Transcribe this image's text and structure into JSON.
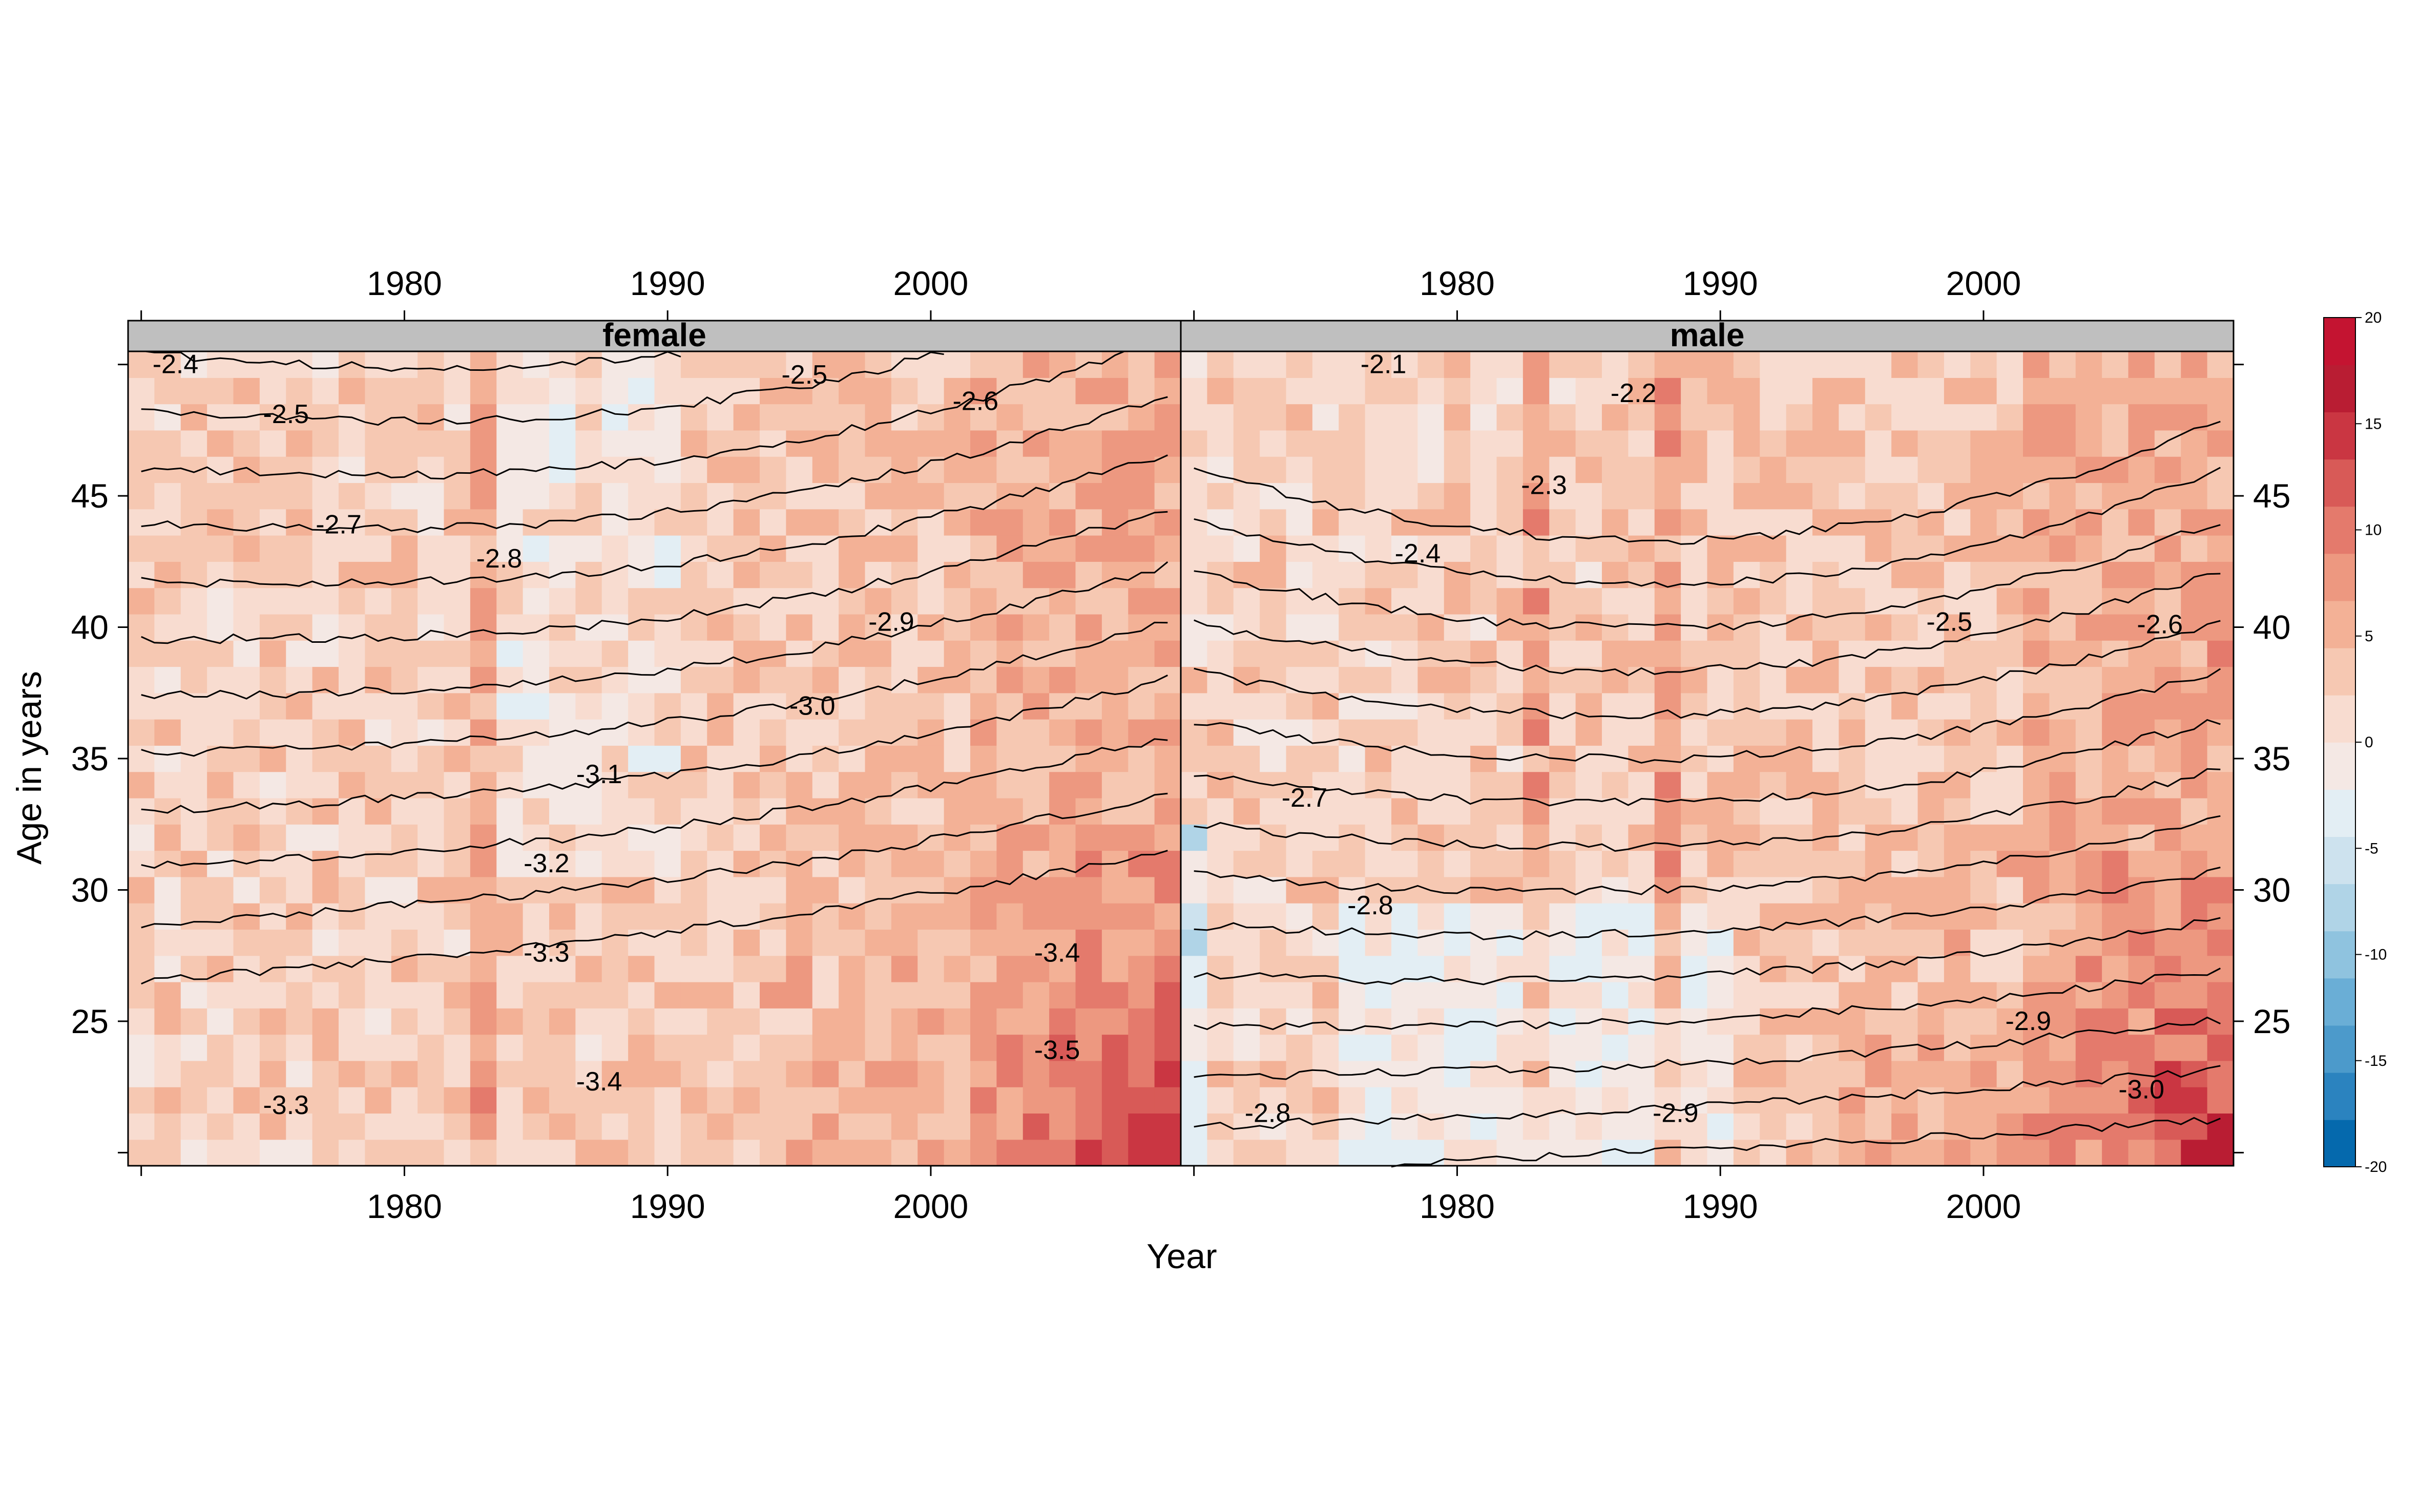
{
  "chart_data": {
    "type": "heatmap",
    "title": "",
    "xlabel": "Year",
    "ylabel": "Age in years",
    "xlim": [
      1969.5,
      2009.5
    ],
    "ylim": [
      19.5,
      50.5
    ],
    "x_ticks": [
      1980,
      1990,
      2000
    ],
    "y_ticks": [
      25,
      30,
      35,
      40,
      45
    ],
    "grid": false,
    "legend_position": "right",
    "colorbar": {
      "min": -20,
      "max": 20,
      "ticks": [
        -20,
        -15,
        -10,
        -5,
        0,
        5,
        10,
        15,
        20
      ],
      "tick_labels": [
        "-20",
        "-15",
        "-10",
        "-5",
        "0",
        "5",
        "10",
        "15",
        "20"
      ],
      "colors": [
        "#0569ad",
        "#2b83bf",
        "#4c9acb",
        "#6aaed6",
        "#8fc3df",
        "#b0d4e7",
        "#cde2ee",
        "#e3eef4",
        "#f4e8e4",
        "#f8dcd0",
        "#f6c8b2",
        "#f3b196",
        "#ed9880",
        "#e47a6c",
        "#d85a57",
        "#ca3642",
        "#b91d33",
        "#c41431"
      ]
    },
    "panels": [
      {
        "name": "female",
        "surface": {
          "base": -3.9,
          "age_slope": 0.046,
          "year_slope": -0.006,
          "year_ref": 1970,
          "age_ref": 20,
          "bend": 0.12
        },
        "contour_labels": [
          {
            "value": "-2.4",
            "x": 1971.3,
            "y": 50.0
          },
          {
            "value": "-2.5",
            "x": 1975.5,
            "y": 48.1
          },
          {
            "value": "-2.5",
            "x": 1995.2,
            "y": 49.6
          },
          {
            "value": "-2.6",
            "x": 2001.7,
            "y": 48.6
          },
          {
            "value": "-2.7",
            "x": 1977.5,
            "y": 43.9
          },
          {
            "value": "-2.8",
            "x": 1983.6,
            "y": 42.6
          },
          {
            "value": "-2.9",
            "x": 1998.5,
            "y": 40.2
          },
          {
            "value": "-3.0",
            "x": 1995.5,
            "y": 37.0
          },
          {
            "value": "-3.1",
            "x": 1987.4,
            "y": 34.4
          },
          {
            "value": "-3.2",
            "x": 1985.4,
            "y": 31.0
          },
          {
            "value": "-3.3",
            "x": 1985.4,
            "y": 27.6
          },
          {
            "value": "-3.4",
            "x": 2004.8,
            "y": 27.6
          },
          {
            "value": "-3.5",
            "x": 2004.8,
            "y": 23.9
          },
          {
            "value": "-3.4",
            "x": 1987.4,
            "y": 22.7
          },
          {
            "value": "-3.3",
            "x": 1975.5,
            "y": 21.8
          }
        ]
      },
      {
        "name": "male",
        "surface": {
          "base": -3.45,
          "age_slope": 0.052,
          "year_slope": -0.003,
          "year_ref": 1970,
          "age_ref": 20,
          "bend": 0.25
        },
        "contour_labels": [
          {
            "value": "-2.1",
            "x": 1977.2,
            "y": 50.0
          },
          {
            "value": "-2.2",
            "x": 1986.7,
            "y": 48.9
          },
          {
            "value": "-2.3",
            "x": 1983.3,
            "y": 45.4
          },
          {
            "value": "-2.4",
            "x": 1978.5,
            "y": 42.8
          },
          {
            "value": "-2.5",
            "x": 1998.7,
            "y": 40.2
          },
          {
            "value": "-2.6",
            "x": 2006.7,
            "y": 40.1
          },
          {
            "value": "-2.7",
            "x": 1974.2,
            "y": 33.5
          },
          {
            "value": "-2.8",
            "x": 1976.7,
            "y": 29.4
          },
          {
            "value": "-2.9",
            "x": 2001.7,
            "y": 25.0
          },
          {
            "value": "-3.0",
            "x": 2006.0,
            "y": 22.4
          },
          {
            "value": "-2.8",
            "x": 1972.8,
            "y": 21.5
          },
          {
            "value": "-2.9",
            "x": 1988.3,
            "y": 21.5
          }
        ]
      }
    ]
  }
}
